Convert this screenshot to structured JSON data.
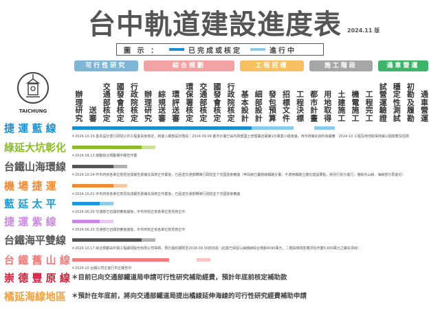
{
  "header": {
    "title": "台中軌道建設進度表",
    "edition": "2024.11 版"
  },
  "legend": {
    "label": "圖 示 ：",
    "done": "已完成或核定",
    "progress": "進行中",
    "done_color": "#1a8fd0",
    "progress_color": "#8ccbee"
  },
  "logo": {
    "text": "TAICHUNG"
  },
  "categories": [
    {
      "label": "可行性研究",
      "color": "#7fb6d6",
      "cols": 5
    },
    {
      "label": "綜合規劃",
      "color": "#f3a3a3",
      "cols": 7
    },
    {
      "label": "工程招標",
      "color": "#f7c063",
      "cols": 5
    },
    {
      "label": "施工階段",
      "color": "#a6a6a6",
      "cols": 5
    },
    {
      "label": "通車營運",
      "color": "#3cb46a",
      "cols": 4
    }
  ],
  "columns": [
    "辦理研究",
    "送審",
    "交通部核定",
    "國發會核定",
    "行政院核定",
    "辦理研究",
    "綜規送審",
    "環評送審",
    "環保署核定",
    "交通部核定",
    "國發會核定",
    "行政院核定",
    "基本設計",
    "細部設計",
    "發包預算",
    "招標文件",
    "工程決標",
    "都市計畫",
    "用地取得",
    "土建施工",
    "機電施工",
    "工程完工",
    "試營運驗證",
    "穩定性測試",
    "初勘及履勘",
    "通車營運"
  ],
  "lines": [
    {
      "name": "捷 運 藍 線",
      "color": "#1a8fd0",
      "light": "#8ccbee",
      "completed_stages": 13,
      "in_progress": [
        [
          13,
          16
        ],
        [
          17.5,
          19
        ]
      ],
      "note": "＊2024.10.29 基本設計暨行政院公共工程委員會核定，將進入細部設計階段｜2024.09.09 都市計畫已由內政部國土管理署召開第1次專案小組會議，待市府補充資料後續審　2024.10 工程及用地取得持續公開閱覽及招標"
    },
    {
      "name": "綠延大坑彰化",
      "color": "#8cbb2a",
      "light": "#c7e09a",
      "completed_stages": 5,
      "in_progress": [
        [
          5,
          6
        ]
      ],
      "note": "＊2024.09.13 啟動綜合規劃期中報告作業"
    },
    {
      "name": "台鐵山海環線",
      "color": "#555555",
      "light": "#b0b0b0",
      "completed_stages": 3,
      "in_progress": [
        [
          3,
          4
        ]
      ],
      "note": "＊2024.10.24 中市府依各單位意見完成報告書補充與修正作業後，已函送交通部轉陳行政院並下交國發會審議（甲段線已屬核線鐵路計畫，不適用鐵路立體化建設要點，將另行拆分進行，僅餘烏山線、海線部分再進化）"
    },
    {
      "name": "機 場 捷 運",
      "color": "#f08a32",
      "light": "#f8c9a0",
      "completed_stages": 3,
      "in_progress": [
        [
          3,
          4
        ]
      ],
      "note": "＊2024.10.01 中市府依各單位意見完成報告書補充與修正作業後，已函送交通部轉陳行政院並下交國發會審議"
    },
    {
      "name": "藍 延 太 平",
      "color": "#1a9ad6",
      "light": "#8ccbee",
      "completed_stages": 2,
      "in_progress": [
        [
          2,
          3
        ]
      ],
      "note": "＊2024.06.20 交通部已召開初審會議後，中市府刻正依各單位意見修正中"
    },
    {
      "name": "捷 運 紫 線",
      "color": "#c98ae0",
      "light": "#e6c8f0",
      "completed_stages": 2,
      "in_progress": [
        [
          2,
          3
        ]
      ],
      "note": "＊2024.06.20 交通部已召開初審會議後，中市府刻正依各單位意見修正中"
    },
    {
      "name": "台鐵海平雙線",
      "color": "#555555",
      "light": "#b0b0b0",
      "completed_stages": 5,
      "in_progress": [
        [
          5,
          6
        ]
      ],
      "note": "＊2024.10.17 綜合規劃由中興工程顧問股份有限公司得標，預計履約期限至2028.09.30前完成（此案已保留山海環線綜合規劃4090萬元，二階段環境影響評估作業5,600萬元之擴充項目）"
    },
    {
      "name": "台 鐵 舊 山 線",
      "color": "#f07c7c",
      "light": "#f8c4c4",
      "completed_stages": 7,
      "in_progress": [
        [
          9,
          10
        ]
      ],
      "note": "＊2024.10 台鐵公司正進行市正報告中"
    },
    {
      "name": "崇 德 豐 原 線",
      "color": "#c8203c",
      "light": "",
      "completed_stages": 0,
      "in_progress": [],
      "note": "＊目前已向交通部鐵道局申請可行性研究補助經費，預計年底前核定補助款"
    },
    {
      "name": "橘延海線地區",
      "color": "#f0a040",
      "light": "",
      "completed_stages": 0,
      "in_progress": [],
      "note": "＊預計在年底前，將向交通部鐵道局提出橘線延伸海線的可行性研究經費補助申請"
    }
  ]
}
